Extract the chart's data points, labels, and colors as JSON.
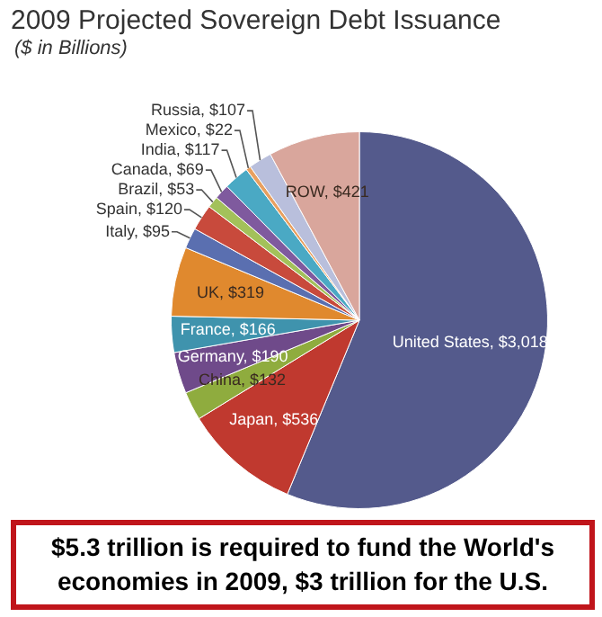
{
  "chart_data": {
    "type": "pie",
    "title": "2009 Projected Sovereign Debt Issuance",
    "subtitle": "($ in Billions)",
    "categories": [
      "United States",
      "Japan",
      "China",
      "Germany",
      "France",
      "UK",
      "Italy",
      "Spain",
      "Brazil",
      "Canada",
      "India",
      "Mexico",
      "Russia",
      "ROW"
    ],
    "values": [
      3018,
      536,
      132,
      190,
      166,
      319,
      95,
      120,
      53,
      69,
      117,
      22,
      107,
      421
    ],
    "value_labels": [
      "$3,018",
      "$536",
      "$132",
      "$190",
      "$166",
      "$319",
      "$95",
      "$120",
      "$53",
      "$69",
      "$117",
      "$22",
      "$107",
      "$421"
    ],
    "colors": [
      "#545a8c",
      "#c0392f",
      "#8fac3e",
      "#6f4a8a",
      "#3f93ad",
      "#e0892e",
      "#5a6fb0",
      "#c84a3c",
      "#a3c15a",
      "#7f5a9e",
      "#4aa9c4",
      "#e8a060",
      "#b9bfdc",
      "#d9a69c"
    ],
    "legend": false,
    "annotations": [
      "$5.3 trillion is required to fund the World's economies in 2009, $3 trillion for the U.S."
    ]
  }
}
